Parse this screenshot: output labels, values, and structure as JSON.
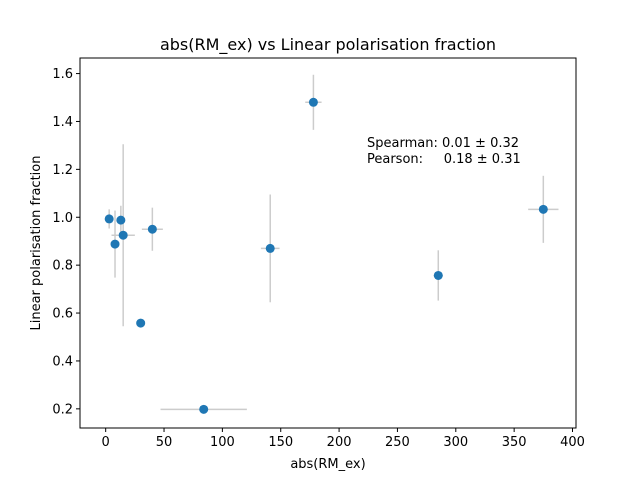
{
  "chart_data": {
    "type": "scatter",
    "title": "abs(RM_ex) vs Linear polarisation fraction",
    "xlabel": "abs(RM_ex)",
    "ylabel": "Linear polarisation fraction",
    "xlim": [
      -22,
      403
    ],
    "ylim": [
      0.12,
      1.665
    ],
    "xticks": [
      0,
      50,
      100,
      150,
      200,
      250,
      300,
      350,
      400
    ],
    "yticks": [
      0.2,
      0.4,
      0.6,
      0.8,
      1.0,
      1.2,
      1.4,
      1.6
    ],
    "xtick_labels": [
      "0",
      "50",
      "100",
      "150",
      "200",
      "250",
      "300",
      "350",
      "400"
    ],
    "ytick_labels": [
      "0.2",
      "0.4",
      "0.6",
      "0.8",
      "1.0",
      "1.2",
      "1.4",
      "1.6"
    ],
    "grid": false,
    "marker_color": "#1f77b4",
    "errorbar_color": "#cccccc",
    "points": [
      {
        "x": 3,
        "y": 0.993,
        "xerr": 3,
        "yerr": 0.04
      },
      {
        "x": 8,
        "y": 0.888,
        "xerr": 2,
        "yerr": 0.14
      },
      {
        "x": 13,
        "y": 0.988,
        "xerr": 3,
        "yerr": 0.06
      },
      {
        "x": 15,
        "y": 0.925,
        "xerr": 10,
        "yerr": 0.38
      },
      {
        "x": 30,
        "y": 0.558,
        "xerr": 0,
        "yerr": 0
      },
      {
        "x": 40,
        "y": 0.95,
        "xerr": 9,
        "yerr": 0.09
      },
      {
        "x": 84,
        "y": 0.198,
        "xerr": 37,
        "yerr": 0
      },
      {
        "x": 141,
        "y": 0.87,
        "xerr": 8,
        "yerr": 0.225
      },
      {
        "x": 178,
        "y": 1.48,
        "xerr": 7,
        "yerr": 0.115
      },
      {
        "x": 285,
        "y": 0.757,
        "xerr": 4,
        "yerr": 0.105
      },
      {
        "x": 375,
        "y": 1.033,
        "xerr": 13,
        "yerr": 0.14
      }
    ],
    "annotations": [
      {
        "text": "Spearman: 0.01 ± 0.32"
      },
      {
        "text": "Pearson:     0.18 ± 0.31"
      }
    ]
  }
}
